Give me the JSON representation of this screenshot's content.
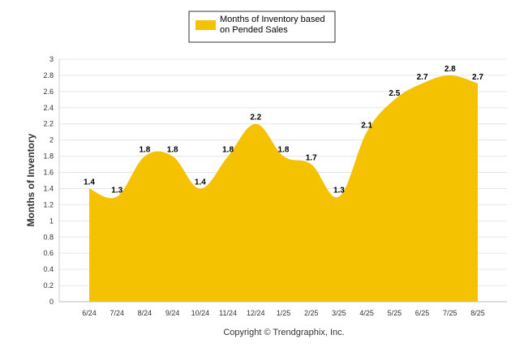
{
  "chart_data": {
    "type": "area",
    "title": "",
    "xlabel": "",
    "ylabel": "Months of Inventory",
    "categories": [
      "6/24",
      "7/24",
      "8/24",
      "9/24",
      "10/24",
      "11/24",
      "12/24",
      "1/25",
      "2/25",
      "3/25",
      "4/25",
      "5/25",
      "6/25",
      "7/25",
      "8/25"
    ],
    "series": [
      {
        "name": "Months of Inventory based on Pended Sales",
        "values": [
          1.4,
          1.3,
          1.8,
          1.8,
          1.4,
          1.8,
          2.2,
          1.8,
          1.7,
          1.3,
          2.1,
          2.5,
          2.7,
          2.8,
          2.7
        ],
        "color": "#f5c200"
      }
    ],
    "data_labels": [
      "1.4",
      "1.3",
      "1.8",
      "1.8",
      "1.4",
      "1.8",
      "2.2",
      "1.8",
      "1.7",
      "1.3",
      "2.1",
      "2.5",
      "2.7",
      "2.8",
      "2.7"
    ],
    "ylim": [
      0,
      3
    ],
    "y_ticks": [
      "0",
      "0.2",
      "0.4",
      "0.6",
      "0.8",
      "1",
      "1.2",
      "1.4",
      "1.6",
      "1.8",
      "2",
      "2.2",
      "2.4",
      "2.6",
      "2.8",
      "3"
    ],
    "grid": true,
    "legend_position": "top-center",
    "legend_lines": [
      "Months of Inventory based",
      "on Pended Sales"
    ]
  },
  "footer": {
    "copyright": "Copyright © Trendgraphix, Inc."
  },
  "colors": {
    "area_fill": "#f5c200",
    "grid": "#e6e6e6",
    "axis": "#cccccc"
  }
}
